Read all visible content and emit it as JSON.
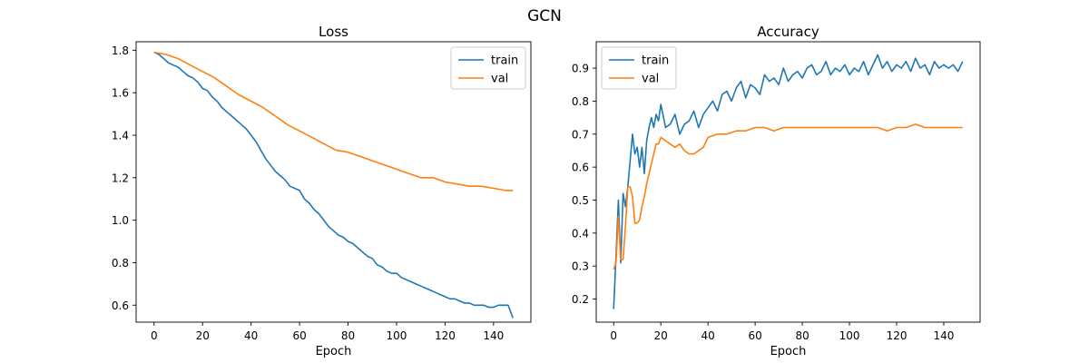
{
  "figure": {
    "suptitle": "GCN"
  },
  "colors": {
    "train": "#1f77b4",
    "val": "#ff7f0e"
  },
  "chart_data": [
    {
      "type": "line",
      "title": "Loss",
      "xlabel": "Epoch",
      "ylabel": "",
      "xlim": [
        -7.4,
        155.4
      ],
      "ylim": [
        0.52,
        1.84
      ],
      "xticks": [
        0,
        20,
        40,
        60,
        80,
        100,
        120,
        140
      ],
      "yticks": [
        0.6,
        0.8,
        1.0,
        1.2,
        1.4,
        1.6,
        1.8
      ],
      "ytick_labels": [
        "0.6",
        "0.8",
        "1.0",
        "1.2",
        "1.4",
        "1.6",
        "1.8"
      ],
      "legend": {
        "position": "top-right",
        "entries": [
          "train",
          "val"
        ]
      },
      "series": [
        {
          "name": "train",
          "x": [
            0,
            2,
            4,
            6,
            8,
            10,
            12,
            14,
            16,
            18,
            20,
            22,
            24,
            26,
            28,
            30,
            32,
            34,
            36,
            38,
            40,
            42,
            44,
            46,
            48,
            50,
            52,
            54,
            56,
            58,
            60,
            62,
            64,
            66,
            68,
            70,
            72,
            74,
            76,
            78,
            80,
            82,
            84,
            86,
            88,
            90,
            92,
            94,
            96,
            98,
            100,
            102,
            104,
            106,
            108,
            110,
            112,
            114,
            116,
            118,
            120,
            122,
            124,
            126,
            128,
            130,
            132,
            134,
            136,
            138,
            140,
            142,
            144,
            146,
            148
          ],
          "values": [
            1.79,
            1.78,
            1.76,
            1.74,
            1.73,
            1.72,
            1.7,
            1.68,
            1.67,
            1.65,
            1.62,
            1.61,
            1.58,
            1.56,
            1.53,
            1.51,
            1.49,
            1.47,
            1.45,
            1.43,
            1.4,
            1.37,
            1.33,
            1.29,
            1.26,
            1.23,
            1.21,
            1.19,
            1.16,
            1.15,
            1.14,
            1.1,
            1.08,
            1.05,
            1.03,
            1.0,
            0.97,
            0.95,
            0.93,
            0.92,
            0.9,
            0.89,
            0.87,
            0.85,
            0.83,
            0.82,
            0.79,
            0.78,
            0.76,
            0.75,
            0.75,
            0.73,
            0.72,
            0.71,
            0.7,
            0.69,
            0.68,
            0.67,
            0.66,
            0.65,
            0.64,
            0.63,
            0.63,
            0.62,
            0.61,
            0.61,
            0.6,
            0.6,
            0.6,
            0.59,
            0.59,
            0.6,
            0.6,
            0.6,
            0.54
          ]
        },
        {
          "name": "val",
          "x": [
            0,
            5,
            10,
            15,
            20,
            25,
            30,
            35,
            40,
            45,
            50,
            55,
            60,
            65,
            70,
            75,
            80,
            85,
            90,
            95,
            100,
            105,
            110,
            115,
            120,
            125,
            130,
            135,
            140,
            145,
            148
          ],
          "values": [
            1.79,
            1.78,
            1.76,
            1.73,
            1.7,
            1.67,
            1.63,
            1.59,
            1.56,
            1.53,
            1.49,
            1.45,
            1.42,
            1.39,
            1.36,
            1.33,
            1.32,
            1.3,
            1.28,
            1.26,
            1.24,
            1.22,
            1.2,
            1.2,
            1.18,
            1.17,
            1.16,
            1.16,
            1.15,
            1.14,
            1.14
          ]
        }
      ]
    },
    {
      "type": "line",
      "title": "Accuracy",
      "xlabel": "Epoch",
      "ylabel": "",
      "xlim": [
        -7.4,
        155.4
      ],
      "ylim": [
        0.13,
        0.98
      ],
      "xticks": [
        0,
        20,
        40,
        60,
        80,
        100,
        120,
        140
      ],
      "yticks": [
        0.2,
        0.3,
        0.4,
        0.5,
        0.6,
        0.7,
        0.8,
        0.9
      ],
      "ytick_labels": [
        "0.2",
        "0.3",
        "0.4",
        "0.5",
        "0.6",
        "0.7",
        "0.8",
        "0.9"
      ],
      "legend": {
        "position": "top-left",
        "entries": [
          "train",
          "val"
        ]
      },
      "series": [
        {
          "name": "train",
          "x": [
            0,
            1,
            2,
            3,
            4,
            5,
            6,
            7,
            8,
            9,
            10,
            11,
            12,
            13,
            14,
            15,
            16,
            17,
            18,
            19,
            20,
            22,
            24,
            26,
            28,
            30,
            32,
            34,
            36,
            38,
            40,
            42,
            44,
            46,
            48,
            50,
            52,
            54,
            56,
            58,
            60,
            62,
            64,
            66,
            68,
            70,
            72,
            74,
            76,
            78,
            80,
            82,
            84,
            86,
            88,
            90,
            92,
            94,
            96,
            98,
            100,
            102,
            104,
            106,
            108,
            110,
            112,
            114,
            116,
            118,
            120,
            122,
            124,
            126,
            128,
            130,
            132,
            134,
            136,
            138,
            140,
            142,
            144,
            146,
            148
          ],
          "values": [
            0.17,
            0.33,
            0.5,
            0.31,
            0.52,
            0.48,
            0.54,
            0.62,
            0.7,
            0.64,
            0.66,
            0.6,
            0.66,
            0.58,
            0.68,
            0.72,
            0.75,
            0.72,
            0.76,
            0.74,
            0.79,
            0.72,
            0.73,
            0.76,
            0.7,
            0.73,
            0.74,
            0.77,
            0.72,
            0.76,
            0.78,
            0.8,
            0.77,
            0.82,
            0.83,
            0.8,
            0.84,
            0.86,
            0.81,
            0.85,
            0.84,
            0.82,
            0.88,
            0.86,
            0.87,
            0.85,
            0.9,
            0.86,
            0.88,
            0.89,
            0.87,
            0.9,
            0.91,
            0.88,
            0.89,
            0.92,
            0.88,
            0.9,
            0.89,
            0.91,
            0.88,
            0.9,
            0.89,
            0.92,
            0.88,
            0.91,
            0.94,
            0.9,
            0.92,
            0.89,
            0.91,
            0.9,
            0.92,
            0.89,
            0.93,
            0.9,
            0.91,
            0.88,
            0.92,
            0.9,
            0.91,
            0.9,
            0.91,
            0.89,
            0.92
          ]
        },
        {
          "name": "val",
          "x": [
            0,
            1,
            2,
            3,
            4,
            5,
            6,
            7,
            8,
            9,
            10,
            11,
            12,
            13,
            14,
            15,
            16,
            17,
            18,
            19,
            20,
            22,
            24,
            26,
            28,
            30,
            32,
            34,
            36,
            38,
            40,
            44,
            48,
            52,
            56,
            60,
            64,
            68,
            72,
            76,
            80,
            84,
            88,
            92,
            96,
            100,
            104,
            108,
            112,
            116,
            120,
            124,
            128,
            132,
            136,
            140,
            144,
            148
          ],
          "values": [
            0.29,
            0.31,
            0.45,
            0.32,
            0.32,
            0.42,
            0.54,
            0.54,
            0.51,
            0.43,
            0.43,
            0.44,
            0.48,
            0.51,
            0.55,
            0.58,
            0.61,
            0.64,
            0.67,
            0.67,
            0.69,
            0.68,
            0.67,
            0.66,
            0.67,
            0.65,
            0.64,
            0.64,
            0.65,
            0.66,
            0.69,
            0.7,
            0.7,
            0.71,
            0.71,
            0.72,
            0.72,
            0.71,
            0.72,
            0.72,
            0.72,
            0.72,
            0.72,
            0.72,
            0.72,
            0.72,
            0.72,
            0.72,
            0.72,
            0.71,
            0.72,
            0.72,
            0.73,
            0.72,
            0.72,
            0.72,
            0.72,
            0.72
          ]
        }
      ]
    }
  ]
}
